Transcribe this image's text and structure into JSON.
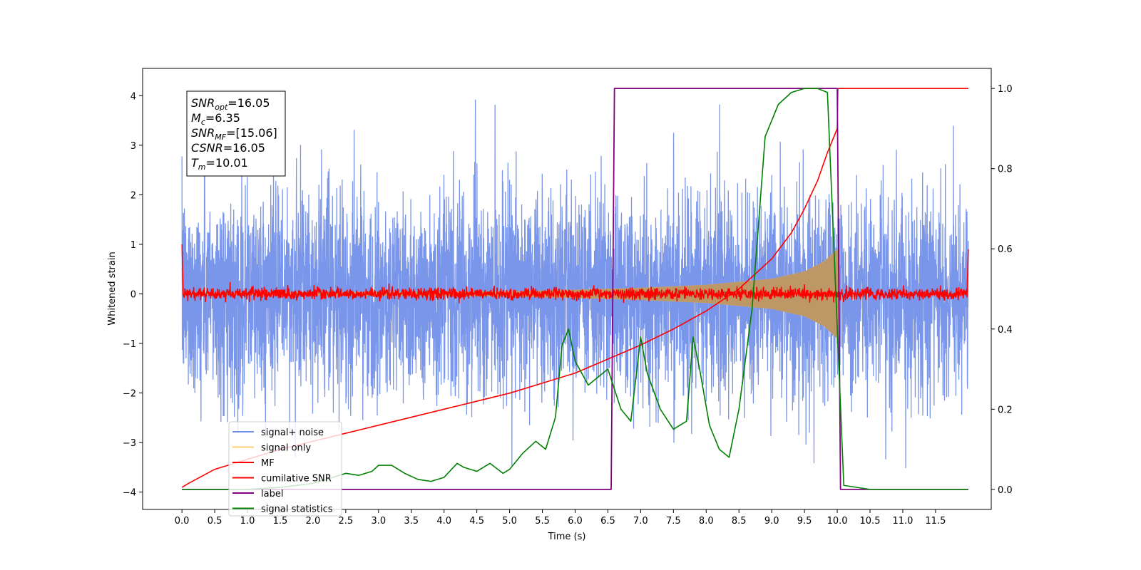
{
  "chart_data": {
    "type": "line",
    "xlabel": "Time (s)",
    "ylabel": "Whitened strain",
    "xlim": [
      -0.6,
      12.35
    ],
    "ylim": [
      -4.35,
      4.55
    ],
    "y2lim": [
      -0.05,
      1.05
    ],
    "x_ticks": [
      "0.0",
      "0.5",
      "1.0",
      "1.5",
      "2.0",
      "2.5",
      "3.0",
      "3.5",
      "4.0",
      "4.5",
      "5.0",
      "5.5",
      "6.0",
      "6.5",
      "7.0",
      "7.5",
      "8.0",
      "8.5",
      "9.0",
      "9.5",
      "10.0",
      "10.5",
      "11.0",
      "11.5"
    ],
    "y_ticks": [
      "4",
      "3",
      "2",
      "1",
      "0",
      "−1",
      "−2",
      "−3",
      "−4"
    ],
    "y2_ticks": [
      "1.0",
      "0.8",
      "0.6",
      "0.4",
      "0.2",
      "0.0"
    ],
    "annotation": {
      "lines": [
        {
          "base": "SNR",
          "sub": "opt",
          "value": "=16.05"
        },
        {
          "base": "M",
          "sub": "c",
          "value": "=6.35"
        },
        {
          "base": "SNR",
          "sub": "MF",
          "value": "=[15.06]"
        },
        {
          "base": "CSNR",
          "sub": "",
          "value": "=16.05"
        },
        {
          "base": "T",
          "sub": "m",
          "value": "=10.01"
        }
      ]
    },
    "legend": {
      "placement": "lower-left",
      "entries": [
        {
          "label": "signal+ noise",
          "color": "#4169e1"
        },
        {
          "label": "signal only",
          "color": "#ffa500"
        },
        {
          "label": "MF",
          "color": "#ff0000"
        },
        {
          "label": "cumilative SNR",
          "color": "#ff0000"
        },
        {
          "label": "label",
          "color": "#800080"
        },
        {
          "label": "signal statistics",
          "color": "#008000"
        }
      ]
    },
    "series": [
      {
        "name": "signal+ noise",
        "axis": "left",
        "color": "#4169e1",
        "alpha": 0.7,
        "generated": "noise",
        "x_range": [
          0,
          12
        ],
        "sigma": 1.0
      },
      {
        "name": "signal only",
        "axis": "left",
        "color": "#ffa500",
        "alpha": 0.5,
        "generated": "chirp_envelope",
        "x_range": [
          0,
          10.01
        ],
        "envelope_x": [
          0,
          5,
          6,
          7,
          8,
          9,
          9.5,
          9.8,
          10.0
        ],
        "envelope_y": [
          0.02,
          0.05,
          0.08,
          0.12,
          0.18,
          0.3,
          0.45,
          0.65,
          0.9
        ]
      },
      {
        "name": "MF",
        "axis": "left",
        "color": "#ff0000",
        "generated": "mf_noise",
        "x_range": [
          0,
          12
        ],
        "sigma": 0.06,
        "start_value": 1.0,
        "end_value": 0.9
      },
      {
        "name": "cumilative SNR",
        "axis": "right",
        "color": "#ff0000",
        "x": [
          0,
          0.1,
          0.5,
          1.0,
          1.5,
          2.0,
          2.5,
          3.0,
          3.5,
          4.0,
          4.5,
          5.0,
          5.5,
          6.0,
          6.5,
          7.0,
          7.5,
          8.0,
          8.5,
          9.0,
          9.3,
          9.5,
          9.7,
          9.85,
          10.0,
          10.01,
          12.0
        ],
        "y": [
          0.005,
          0.015,
          0.05,
          0.075,
          0.1,
          0.12,
          0.14,
          0.16,
          0.18,
          0.2,
          0.22,
          0.24,
          0.265,
          0.29,
          0.325,
          0.36,
          0.4,
          0.445,
          0.5,
          0.575,
          0.64,
          0.7,
          0.77,
          0.84,
          0.9,
          1.0,
          1.0
        ]
      },
      {
        "name": "label",
        "axis": "right",
        "color": "#800080",
        "x": [
          0,
          6.55,
          6.6,
          10.0,
          10.05,
          12.0
        ],
        "y": [
          0,
          0,
          1,
          1,
          0,
          0
        ]
      },
      {
        "name": "signal statistics",
        "axis": "right",
        "color": "#008000",
        "x": [
          0,
          0.5,
          1.0,
          1.5,
          2.0,
          2.3,
          2.5,
          2.7,
          2.9,
          3.0,
          3.2,
          3.4,
          3.6,
          3.8,
          4.0,
          4.2,
          4.3,
          4.5,
          4.7,
          4.9,
          5.0,
          5.2,
          5.4,
          5.55,
          5.7,
          5.8,
          5.9,
          6.0,
          6.2,
          6.35,
          6.5,
          6.7,
          6.85,
          7.0,
          7.1,
          7.3,
          7.5,
          7.7,
          7.8,
          7.9,
          8.05,
          8.2,
          8.35,
          8.5,
          8.7,
          8.9,
          9.1,
          9.3,
          9.5,
          9.7,
          9.85,
          9.95,
          10.1,
          10.5,
          11.0,
          11.5,
          11.99
        ],
        "y": [
          0.0,
          0.0,
          0.0,
          0.005,
          0.015,
          0.03,
          0.04,
          0.035,
          0.045,
          0.06,
          0.06,
          0.04,
          0.025,
          0.02,
          0.03,
          0.065,
          0.055,
          0.045,
          0.065,
          0.04,
          0.05,
          0.09,
          0.12,
          0.1,
          0.18,
          0.36,
          0.4,
          0.32,
          0.26,
          0.28,
          0.3,
          0.2,
          0.17,
          0.38,
          0.29,
          0.2,
          0.15,
          0.17,
          0.38,
          0.3,
          0.16,
          0.1,
          0.08,
          0.2,
          0.45,
          0.88,
          0.96,
          0.99,
          1.0,
          1.0,
          0.99,
          0.6,
          0.01,
          0.0,
          0.0,
          0.0,
          0.0
        ]
      }
    ]
  }
}
